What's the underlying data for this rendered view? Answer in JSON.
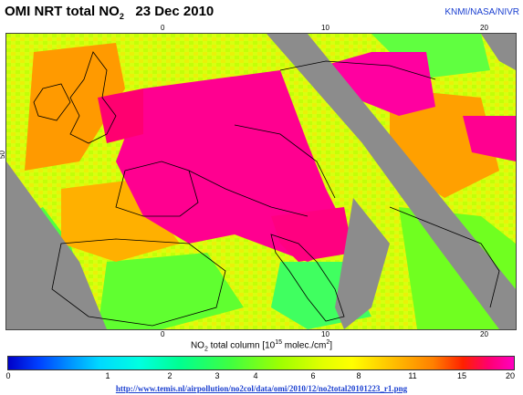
{
  "header": {
    "title_prefix": "OMI NRT total NO",
    "title_sub": "2",
    "title_date": "23 Dec 2010",
    "credit": "KNMI/NASA/NIVR"
  },
  "map": {
    "top_ticks": [
      "0",
      "10",
      "20"
    ],
    "bottom_ticks": [
      "0",
      "10",
      "20"
    ],
    "left_tick": "50",
    "colors": {
      "land_gray": "#8c8c8c",
      "hot_pink": "#ff0090",
      "orange": "#ff9000",
      "yellow": "#ffff00",
      "green": "#40ff40"
    }
  },
  "colorbar": {
    "axis_title_prefix": "NO",
    "axis_title_sub": "2",
    "axis_title_mid": " total column [10",
    "axis_title_sup": "15",
    "axis_title_suffix": " molec./cm",
    "axis_title_sup2": "2",
    "axis_title_end": "]",
    "labels": [
      "0",
      "1",
      "2",
      "3",
      "4",
      "6",
      "8",
      "11",
      "15",
      "20"
    ]
  },
  "footer": {
    "url": "http://www.temis.nl/airpollution/no2col/data/omi/2010/12/no2total20101223_r1.png"
  }
}
